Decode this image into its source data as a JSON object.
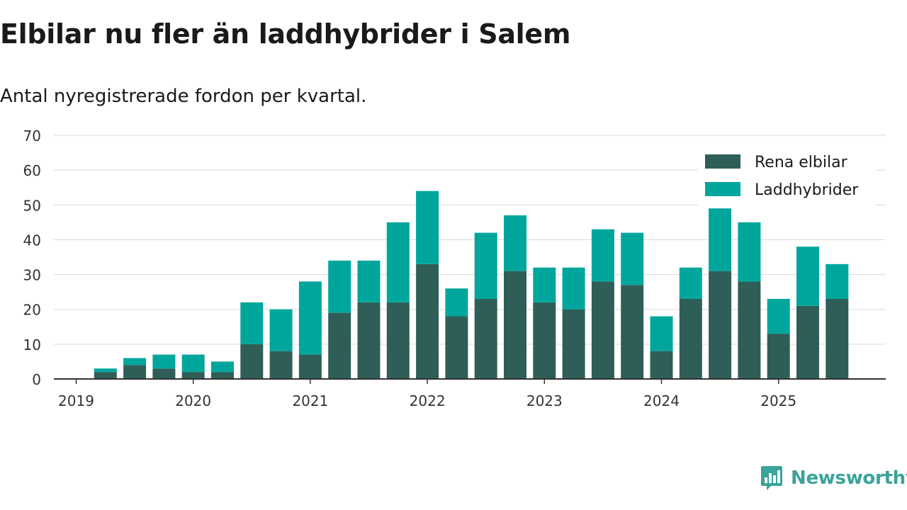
{
  "header": {
    "title": "Elbilar nu fler än laddhybrider i Salem",
    "subtitle": "Antal nyregistrerade fordon per kvartal."
  },
  "brand": {
    "name": "Newsworthy",
    "color": "#3aa39a"
  },
  "chart_data": {
    "type": "bar",
    "stacked": true,
    "title": "Elbilar nu fler än laddhybrider i Salem",
    "subtitle": "Antal nyregistrerade fordon per kvartal.",
    "xlabel": "",
    "ylabel": "",
    "ylim": [
      0,
      70
    ],
    "yticks": [
      0,
      10,
      20,
      30,
      40,
      50,
      60,
      70
    ],
    "grid": true,
    "legend_position": "top-right",
    "categories": [
      "2019 Q1",
      "2019 Q2",
      "2019 Q3",
      "2019 Q4",
      "2020 Q1",
      "2020 Q2",
      "2020 Q3",
      "2020 Q4",
      "2021 Q1",
      "2021 Q2",
      "2021 Q3",
      "2021 Q4",
      "2022 Q1",
      "2022 Q2",
      "2022 Q3",
      "2022 Q4",
      "2023 Q1",
      "2023 Q2",
      "2023 Q3",
      "2023 Q4",
      "2024 Q1",
      "2024 Q2",
      "2024 Q3",
      "2024 Q4",
      "2025 Q1",
      "2025 Q2",
      "2025 Q3"
    ],
    "year_ticks": [
      {
        "label": "2019",
        "index": 0
      },
      {
        "label": "2020",
        "index": 4
      },
      {
        "label": "2021",
        "index": 8
      },
      {
        "label": "2022",
        "index": 12
      },
      {
        "label": "2023",
        "index": 16
      },
      {
        "label": "2024",
        "index": 20
      },
      {
        "label": "2025",
        "index": 24
      }
    ],
    "series": [
      {
        "name": "Rena elbilar",
        "color": "#2f5e58",
        "values": [
          0,
          2,
          4,
          3,
          2,
          2,
          10,
          8,
          7,
          19,
          22,
          22,
          33,
          18,
          23,
          31,
          22,
          20,
          28,
          27,
          8,
          23,
          31,
          28,
          13,
          21,
          23
        ]
      },
      {
        "name": "Laddhybrider",
        "color": "#00a69c",
        "values": [
          0,
          1,
          2,
          4,
          5,
          3,
          12,
          12,
          21,
          15,
          12,
          23,
          21,
          8,
          19,
          16,
          10,
          12,
          15,
          15,
          10,
          9,
          18,
          17,
          10,
          17,
          10
        ]
      }
    ]
  }
}
